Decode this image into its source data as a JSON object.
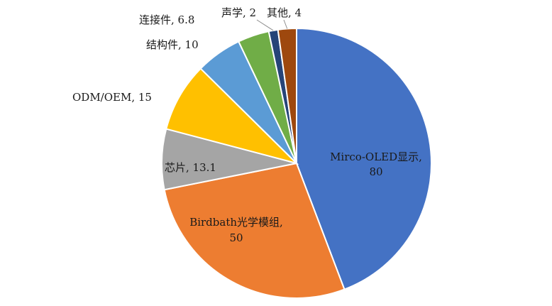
{
  "chart_data": {
    "type": "pie",
    "start_angle_deg": 0,
    "direction": "clockwise",
    "legend": "none",
    "slices": [
      {
        "name": "Mirco-OLED显示",
        "value": 80,
        "label": "Mirco-OLED显示,",
        "value_label": "80",
        "color": "#4472C4"
      },
      {
        "name": "Birdbath光学模组",
        "value": 50,
        "label": "Birdbath光学模组,",
        "value_label": "50",
        "color": "#ED7D31"
      },
      {
        "name": "芯片",
        "value": 13.1,
        "label": "芯片, 13.1",
        "value_label": "",
        "color": "#A5A5A5"
      },
      {
        "name": "ODM/OEM",
        "value": 15,
        "label": "ODM/OEM, 15",
        "value_label": "",
        "color": "#FFC000"
      },
      {
        "name": "结构件",
        "value": 10,
        "label": "结构件, 10",
        "value_label": "",
        "color": "#5B9BD5"
      },
      {
        "name": "连接件",
        "value": 6.8,
        "label": "连接件, 6.8",
        "value_label": "",
        "color": "#70AD47"
      },
      {
        "name": "声学",
        "value": 2,
        "label": "声学, 2",
        "value_label": "",
        "color": "#264478"
      },
      {
        "name": "其他",
        "value": 4,
        "label": "其他, 4",
        "value_label": "",
        "color": "#9E480E"
      }
    ]
  }
}
